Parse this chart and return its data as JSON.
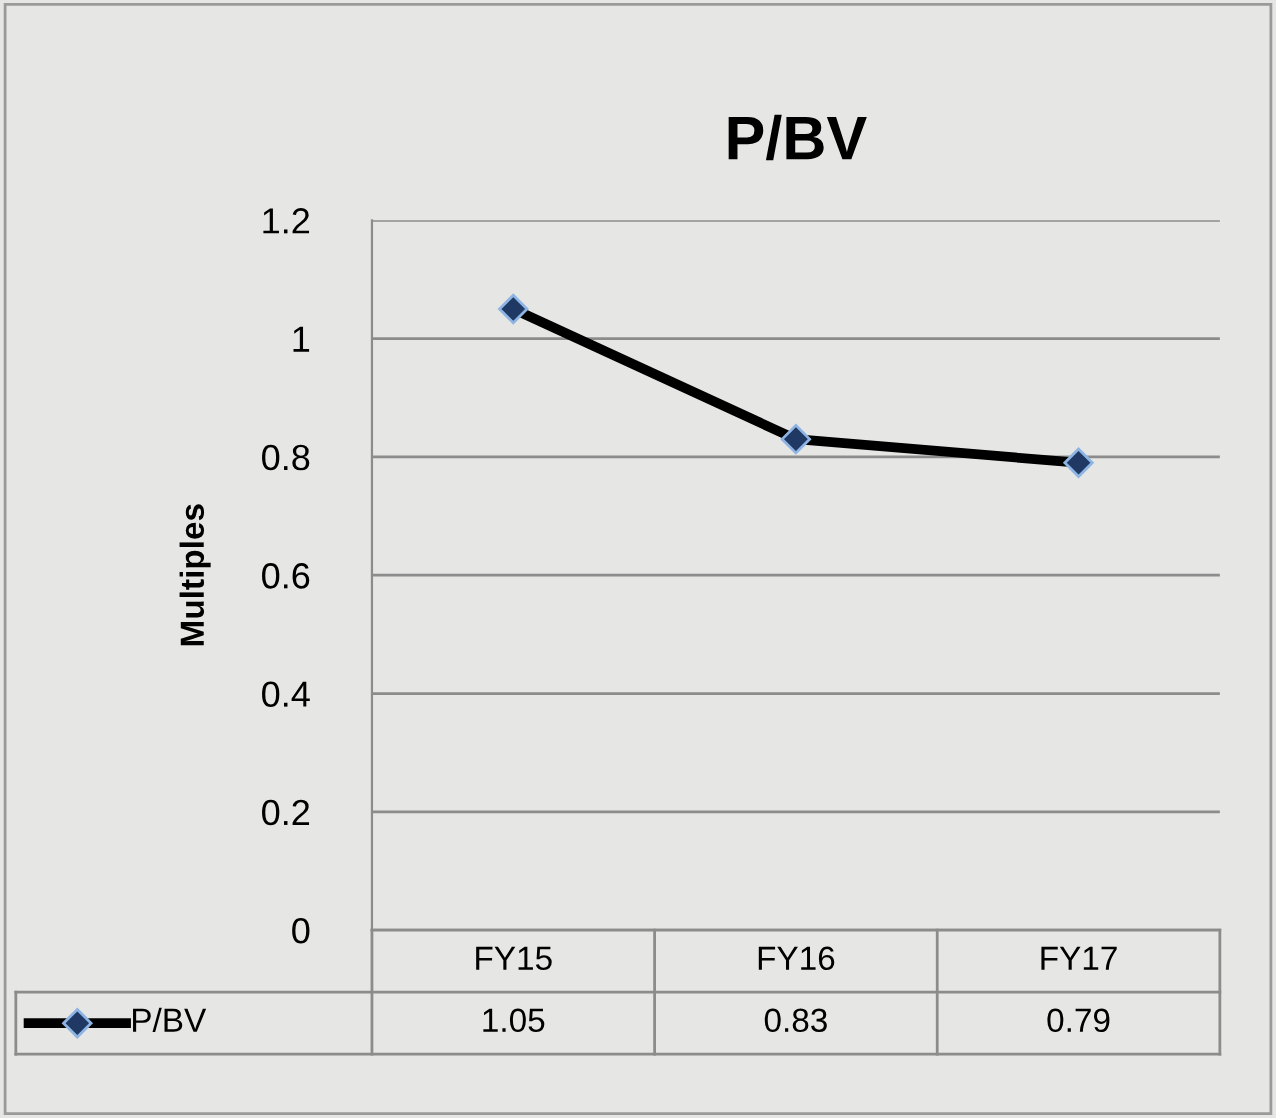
{
  "chart_data": {
    "type": "line",
    "title": "P/BV",
    "ylabel": "Multiples",
    "categories": [
      "FY15",
      "FY16",
      "FY17"
    ],
    "series": [
      {
        "name": "P/BV",
        "color": "#000000",
        "values": [
          1.05,
          0.83,
          0.79
        ]
      }
    ],
    "ylim": [
      0,
      1.2
    ],
    "yticks": [
      0,
      0.2,
      0.4,
      0.6,
      0.8,
      1,
      1.2
    ],
    "grid": "y",
    "legend": "bottom",
    "marker": "diamond",
    "line_style": "solid",
    "data_labels": true
  }
}
